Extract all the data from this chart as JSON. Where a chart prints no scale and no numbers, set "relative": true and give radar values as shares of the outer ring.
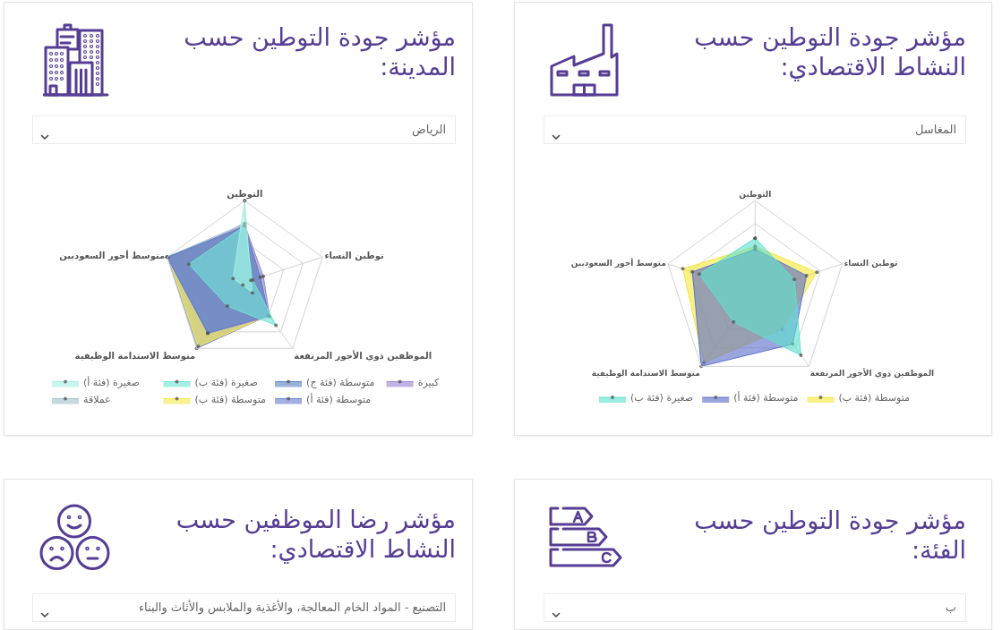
{
  "chart_data": [
    {
      "type": "radar",
      "title": "مؤشر جودة التوطين حسب النشاط الاقتصادي:",
      "subtitle": "المغاسل",
      "relative": true,
      "grid": true,
      "legend": "bottom",
      "marker": "circle",
      "categories": [
        "التوطين",
        "توطين النساء",
        "الموظفين ذوي الأجور المرتفعة",
        "متوسط الاستدامة الوظيفية",
        "متوسط أجور السعوديين"
      ],
      "series": [
        {
          "name": "متوسطة (فئة ب)",
          "color": "#f5e63d",
          "values": [
            0.5,
            0.71,
            0.5,
            0.95,
            0.83
          ]
        },
        {
          "name": "متوسطة (فئة أ)",
          "color": "#5c70c8",
          "values": [
            0.47,
            0.59,
            0.7,
            1.0,
            0.72
          ]
        },
        {
          "name": "صغيرة (فئة ب)",
          "color": "#5fe0cf",
          "values": [
            0.59,
            0.45,
            0.85,
            0.4,
            0.64
          ]
        }
      ]
    },
    {
      "type": "radar",
      "title": "مؤشر جودة التوطين حسب المدينة:",
      "subtitle": "الرياض",
      "relative": true,
      "grid": true,
      "legend": "bottom",
      "marker": "circle",
      "categories": [
        "التوطين",
        "توطين النساء",
        "الموظفين ذوي الأجور المرتفعة",
        "متوسط الاستدامة الوظيفية",
        "متوسط أجور السعوديين"
      ],
      "series": [
        {
          "name": "متوسطة (فئة أ)",
          "color": "#6a7ed0",
          "values": [
            0.68,
            0.2,
            0.5,
            1.0,
            1.0
          ]
        },
        {
          "name": "متوسطة (فئة ب)",
          "color": "#f4e84a",
          "values": [
            0.68,
            0.2,
            0.5,
            0.97,
            0.98
          ]
        },
        {
          "name": "عملاقة",
          "color": "#a3c4cd",
          "values": [
            0.72,
            0.2,
            0.5,
            0.77,
            1.0
          ]
        },
        {
          "name": "كبيرة",
          "color": "#9b85d6",
          "values": [
            0.7,
            0.24,
            0.52,
            0.77,
            0.98
          ]
        },
        {
          "name": "متوسطة (فئة ج)",
          "color": "#5a82c3",
          "values": [
            0.68,
            0.2,
            0.5,
            0.77,
            1.0
          ]
        },
        {
          "name": "صغيرة (فئة ب)",
          "color": "#6fe5d5",
          "values": [
            0.69,
            0.1,
            0.65,
            0.36,
            0.72
          ]
        },
        {
          "name": "صغيرة (فئة أ)",
          "color": "#a5efe5",
          "values": [
            1.0,
            0.08,
            0.16,
            0.04,
            0.15
          ]
        }
      ]
    },
    {
      "type": "other",
      "title": "مؤشر جودة التوطين حسب الفئة:",
      "subtitle": "ب"
    },
    {
      "type": "other",
      "title": "مؤشر رضا الموظفين حسب النشاط الاقتصادي:",
      "subtitle": "التصنيع - المواد الخام المعالجة، والأغذية والملابس والأثاث والبناء"
    }
  ]
}
